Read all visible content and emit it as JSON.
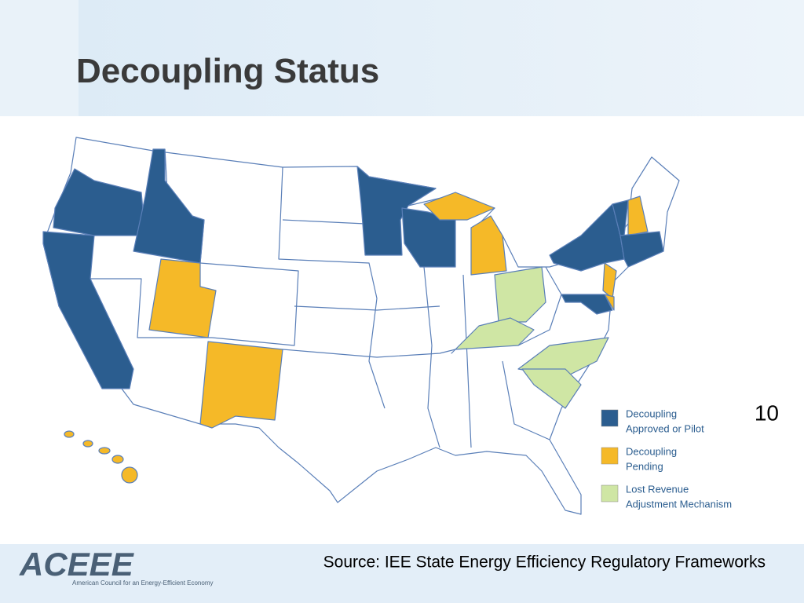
{
  "title": "Decoupling Status",
  "page_number": "10",
  "legend": [
    {
      "lines": [
        "Decoupling",
        "Approved or Pilot"
      ],
      "color": "#2b5d8f"
    },
    {
      "lines": [
        "Decoupling",
        "Pending"
      ],
      "color": "#f5b928"
    },
    {
      "lines": [
        "Lost Revenue",
        "Adjustment Mechanism"
      ],
      "color": "#cfe6a4"
    }
  ],
  "source": "Source: IEE State Energy Efficiency Regulatory Frameworks",
  "logo": {
    "name": "ACEEE",
    "tagline": "American Council for an Energy-Efficient Economy"
  }
}
